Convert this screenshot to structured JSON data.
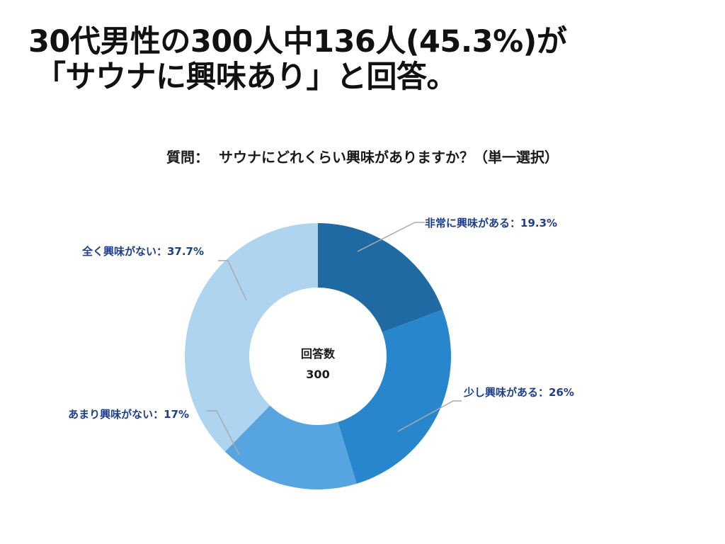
{
  "headline": {
    "line1": "30代男性の300人中136人(45.3%)が",
    "line2": "「サウナに興味あり」と回答。"
  },
  "question": {
    "label": "質問：",
    "text": "サウナにどれくらい興味がありますか？（単一選択）"
  },
  "chart_data": {
    "type": "pie",
    "style": "donut",
    "title": "サウナにどれくらい興味がありますか？（単一選択）",
    "center_label": "回答数",
    "center_value": "300",
    "start": "top",
    "direction": "clockwise",
    "slices": [
      {
        "label": "非常に興味がある",
        "value": 19.3,
        "display": "非常に興味がある：19.3%",
        "color": "#1f6aa3"
      },
      {
        "label": "少し興味がある",
        "value": 26,
        "display": "少し興味がある：26%",
        "color": "#2786cc"
      },
      {
        "label": "あまり興味がない",
        "value": 17,
        "display": "あまり興味がない：17%",
        "color": "#56a5e0"
      },
      {
        "label": "全く興味がない",
        "value": 37.7,
        "display": "全く興味がない：37.7%",
        "color": "#aed4f0"
      }
    ]
  },
  "colors": {
    "label_text": "#1d3f8c",
    "leader_line": "#aaaaaa",
    "headline_text": "#111111"
  }
}
